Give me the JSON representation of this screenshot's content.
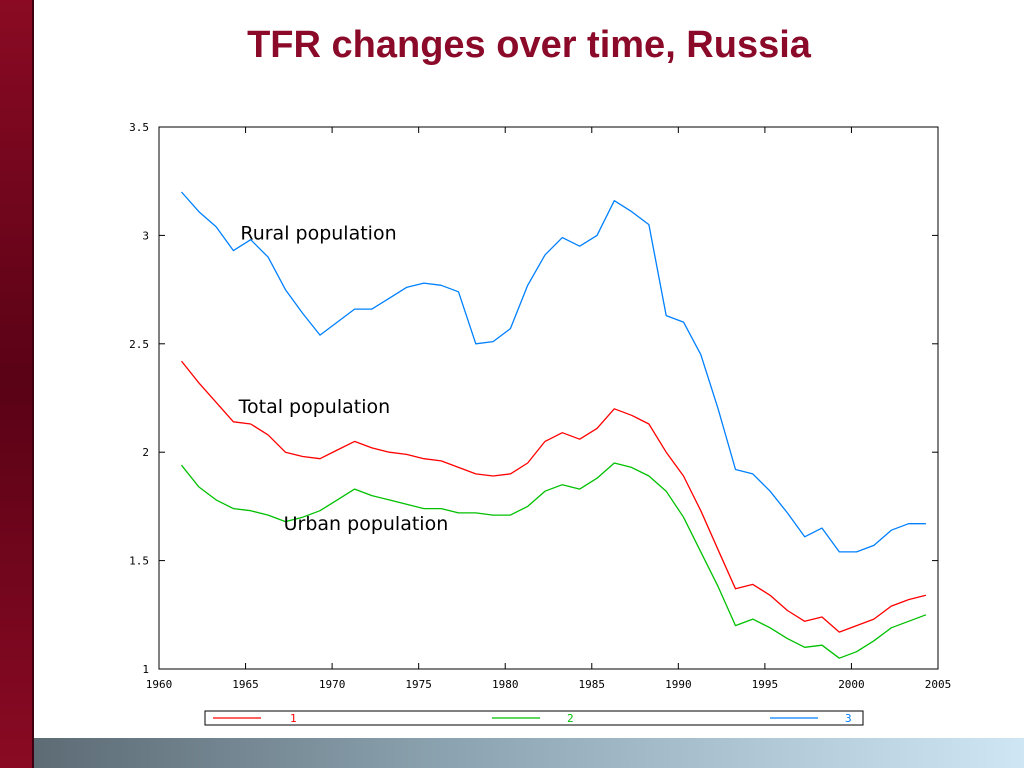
{
  "slide": {
    "title": "TFR changes over time, Russia"
  },
  "colors": {
    "accent": "#8b0a2a",
    "side_bar": "#6b0519",
    "series_1": "#ff0000",
    "series_2": "#00c000",
    "series_3": "#0080ff"
  },
  "chart_data": {
    "type": "line",
    "title": "",
    "xlabel": "",
    "ylabel": "",
    "xlim": [
      1960,
      2005
    ],
    "ylim": [
      1,
      3.5
    ],
    "grid": false,
    "legend_position": "bottom",
    "x_ticks": [
      1960,
      1965,
      1970,
      1975,
      1980,
      1985,
      1990,
      1995,
      2000,
      2005
    ],
    "x_tick_labels": [
      "1960",
      "1965",
      "1970",
      "1975",
      "1980",
      "1985",
      "1990",
      "1995",
      "2000",
      "2005"
    ],
    "y_ticks": [
      1,
      1.5,
      2,
      2.5,
      3,
      3.5
    ],
    "y_tick_labels": [
      "1",
      "1.5",
      "2",
      "2.5",
      "3",
      "3.5"
    ],
    "annotations": [
      {
        "text": "Rural population",
        "x": 1964.7,
        "y": 2.98
      },
      {
        "text": "Total population",
        "x": 1964.6,
        "y": 2.18
      },
      {
        "text": "Urban population",
        "x": 1967.2,
        "y": 1.64
      }
    ],
    "series": [
      {
        "name": "1",
        "color": "#ff0000",
        "x": [
          1961.3,
          1962.3,
          1963.3,
          1964.3,
          1965.3,
          1966.3,
          1967.3,
          1968.3,
          1969.3,
          1970.3,
          1971.3,
          1972.3,
          1973.3,
          1974.3,
          1975.3,
          1976.3,
          1977.3,
          1978.3,
          1979.3,
          1980.3,
          1981.3,
          1982.3,
          1983.3,
          1984.3,
          1985.3,
          1986.3,
          1987.3,
          1988.3,
          1989.3,
          1990.3,
          1991.3,
          1992.3,
          1993.3,
          1994.3,
          1995.3,
          1996.3,
          1997.3,
          1998.3,
          1999.3,
          2000.3,
          2001.3,
          2002.3,
          2003.3,
          2004.3
        ],
        "y": [
          2.42,
          2.32,
          2.23,
          2.14,
          2.13,
          2.08,
          2.0,
          1.98,
          1.97,
          2.01,
          2.05,
          2.02,
          2.0,
          1.99,
          1.97,
          1.96,
          1.93,
          1.9,
          1.89,
          1.9,
          1.95,
          2.05,
          2.09,
          2.06,
          2.11,
          2.2,
          2.17,
          2.13,
          2.0,
          1.89,
          1.73,
          1.55,
          1.37,
          1.39,
          1.34,
          1.27,
          1.22,
          1.24,
          1.17,
          1.2,
          1.23,
          1.29,
          1.32,
          1.34
        ]
      },
      {
        "name": "2",
        "color": "#00c000",
        "x": [
          1961.3,
          1962.3,
          1963.3,
          1964.3,
          1965.3,
          1966.3,
          1967.3,
          1968.3,
          1969.3,
          1970.3,
          1971.3,
          1972.3,
          1973.3,
          1974.3,
          1975.3,
          1976.3,
          1977.3,
          1978.3,
          1979.3,
          1980.3,
          1981.3,
          1982.3,
          1983.3,
          1984.3,
          1985.3,
          1986.3,
          1987.3,
          1988.3,
          1989.3,
          1990.3,
          1991.3,
          1992.3,
          1993.3,
          1994.3,
          1995.3,
          1996.3,
          1997.3,
          1998.3,
          1999.3,
          2000.3,
          2001.3,
          2002.3,
          2003.3,
          2004.3
        ],
        "y": [
          1.94,
          1.84,
          1.78,
          1.74,
          1.73,
          1.71,
          1.68,
          1.7,
          1.73,
          1.78,
          1.83,
          1.8,
          1.78,
          1.76,
          1.74,
          1.74,
          1.72,
          1.72,
          1.71,
          1.71,
          1.75,
          1.82,
          1.85,
          1.83,
          1.88,
          1.95,
          1.93,
          1.89,
          1.82,
          1.7,
          1.54,
          1.38,
          1.2,
          1.23,
          1.19,
          1.14,
          1.1,
          1.11,
          1.05,
          1.08,
          1.13,
          1.19,
          1.22,
          1.25
        ]
      },
      {
        "name": "3",
        "color": "#0080ff",
        "x": [
          1961.3,
          1962.3,
          1963.3,
          1964.3,
          1965.3,
          1966.3,
          1967.3,
          1968.3,
          1969.3,
          1970.3,
          1971.3,
          1972.3,
          1973.3,
          1974.3,
          1975.3,
          1976.3,
          1977.3,
          1978.3,
          1979.3,
          1980.3,
          1981.3,
          1982.3,
          1983.3,
          1984.3,
          1985.3,
          1986.3,
          1987.3,
          1988.3,
          1989.3,
          1990.3,
          1991.3,
          1992.3,
          1993.3,
          1994.3,
          1995.3,
          1996.3,
          1997.3,
          1998.3,
          1999.3,
          2000.3,
          2001.3,
          2002.3,
          2003.3,
          2004.3
        ],
        "y": [
          3.2,
          3.11,
          3.04,
          2.93,
          2.98,
          2.9,
          2.75,
          2.64,
          2.54,
          2.6,
          2.66,
          2.66,
          2.71,
          2.76,
          2.78,
          2.77,
          2.74,
          2.5,
          2.51,
          2.57,
          2.77,
          2.91,
          2.99,
          2.95,
          3.0,
          3.16,
          3.11,
          3.05,
          2.63,
          2.6,
          2.45,
          2.2,
          1.92,
          1.9,
          1.82,
          1.72,
          1.61,
          1.65,
          1.54,
          1.54,
          1.57,
          1.64,
          1.67,
          1.67
        ]
      }
    ]
  }
}
